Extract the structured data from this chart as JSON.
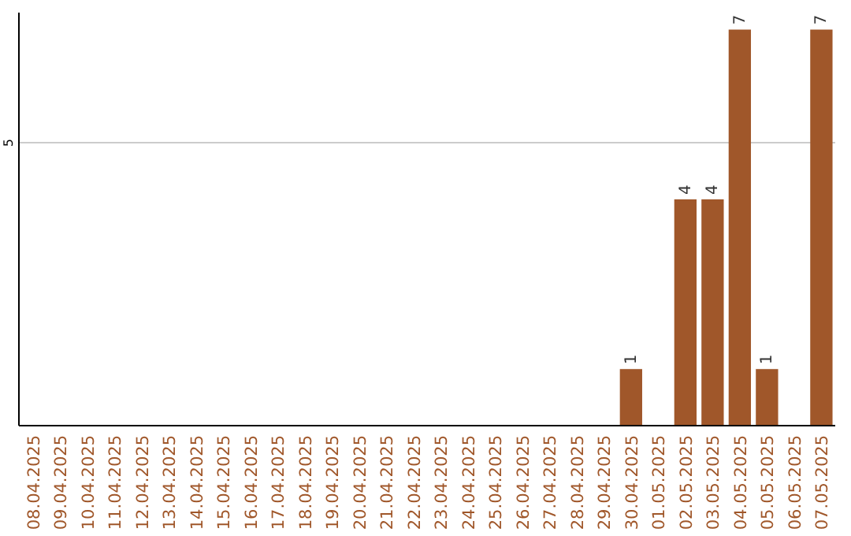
{
  "chart_data": {
    "type": "bar",
    "categories": [
      "08.04.2025",
      "09.04.2025",
      "10.04.2025",
      "11.04.2025",
      "12.04.2025",
      "13.04.2025",
      "14.04.2025",
      "15.04.2025",
      "16.04.2025",
      "17.04.2025",
      "18.04.2025",
      "19.04.2025",
      "20.04.2025",
      "21.04.2025",
      "22.04.2025",
      "23.04.2025",
      "24.04.2025",
      "25.04.2025",
      "26.04.2025",
      "27.04.2025",
      "28.04.2025",
      "29.04.2025",
      "30.04.2025",
      "01.05.2025",
      "02.05.2025",
      "03.05.2025",
      "04.05.2025",
      "05.05.2025",
      "06.05.2025",
      "07.05.2025"
    ],
    "values": [
      null,
      null,
      null,
      null,
      null,
      null,
      null,
      null,
      null,
      null,
      null,
      null,
      null,
      null,
      null,
      null,
      null,
      null,
      null,
      null,
      null,
      null,
      1,
      null,
      4,
      4,
      7,
      1,
      null,
      7
    ],
    "color": "#a0572a",
    "ylim": [
      0,
      7.3
    ],
    "yticks": [
      5
    ],
    "grid": "y",
    "data_labels": true
  }
}
